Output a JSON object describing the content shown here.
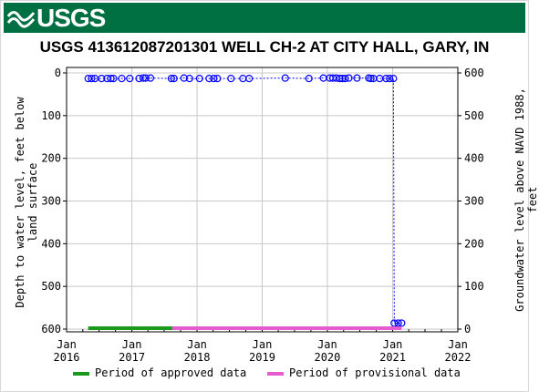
{
  "header": {
    "logo_text": "USGS",
    "brand_color": "#006f41"
  },
  "chart_data": {
    "type": "scatter",
    "title": "USGS 413612087201301 WELL CH-2 AT CITY HALL, GARY, IN",
    "ylabel_left": "Depth to water level, feet below land surface",
    "ylabel_right": "Groundwater level above NAVD 1988, feet",
    "y_left_range": [
      0,
      600
    ],
    "y_left_ticks": [
      0,
      100,
      200,
      300,
      400,
      500,
      600
    ],
    "y_left_inverted": true,
    "y_right_range": [
      0,
      600
    ],
    "y_right_ticks": [
      0,
      100,
      200,
      300,
      400,
      500,
      600
    ],
    "x_range": [
      "2016-01-01",
      "2022-01-01"
    ],
    "x_ticks": [
      {
        "date": "2016-01-01",
        "label1": "Jan",
        "label2": "2016"
      },
      {
        "date": "2017-01-01",
        "label1": "Jan",
        "label2": "2017"
      },
      {
        "date": "2018-01-01",
        "label1": "Jan",
        "label2": "2018"
      },
      {
        "date": "2019-01-01",
        "label1": "Jan",
        "label2": "2019"
      },
      {
        "date": "2020-01-01",
        "label1": "Jan",
        "label2": "2020"
      },
      {
        "date": "2021-01-01",
        "label1": "Jan",
        "label2": "2021"
      },
      {
        "date": "2022-01-01",
        "label1": "Jan",
        "label2": "2022"
      }
    ],
    "grid": true,
    "series": [
      {
        "marker_color": "#0000ff",
        "line_style": "dotted",
        "points": [
          [
            "2016-05-01",
            13
          ],
          [
            "2016-05-20",
            13
          ],
          [
            "2016-06-08",
            13
          ],
          [
            "2016-07-15",
            13
          ],
          [
            "2016-08-15",
            13
          ],
          [
            "2016-09-05",
            13
          ],
          [
            "2016-09-20",
            13
          ],
          [
            "2016-11-05",
            13
          ],
          [
            "2016-12-20",
            13
          ],
          [
            "2017-02-10",
            13
          ],
          [
            "2017-03-05",
            12
          ],
          [
            "2017-03-20",
            12
          ],
          [
            "2017-04-15",
            12
          ],
          [
            "2017-08-10",
            13
          ],
          [
            "2017-08-25",
            13
          ],
          [
            "2017-10-20",
            12
          ],
          [
            "2017-11-20",
            13
          ],
          [
            "2018-01-15",
            13
          ],
          [
            "2018-03-10",
            13
          ],
          [
            "2018-04-05",
            13
          ],
          [
            "2018-04-25",
            13
          ],
          [
            "2018-07-10",
            13
          ],
          [
            "2018-09-15",
            13
          ],
          [
            "2018-10-20",
            13
          ],
          [
            "2019-05-10",
            12
          ],
          [
            "2019-09-20",
            13
          ],
          [
            "2019-12-10",
            12
          ],
          [
            "2020-01-15",
            12
          ],
          [
            "2020-02-01",
            12
          ],
          [
            "2020-02-20",
            12
          ],
          [
            "2020-03-10",
            13
          ],
          [
            "2020-03-25",
            13
          ],
          [
            "2020-04-10",
            13
          ],
          [
            "2020-05-01",
            12
          ],
          [
            "2020-06-15",
            12
          ],
          [
            "2020-08-20",
            12
          ],
          [
            "2020-09-01",
            13
          ],
          [
            "2020-09-15",
            13
          ],
          [
            "2020-10-20",
            13
          ],
          [
            "2020-11-25",
            13
          ],
          [
            "2020-12-15",
            13
          ],
          [
            "2021-01-05",
            13
          ],
          [
            "2021-01-10",
            586
          ],
          [
            "2021-02-01",
            586
          ],
          [
            "2021-02-20",
            586
          ]
        ]
      }
    ],
    "legend": [
      {
        "label": "Period of approved data",
        "color": "#1a9a1a",
        "start": "2016-05-01",
        "end": "2017-08-15"
      },
      {
        "label": "Period of provisional data",
        "color": "#e65ccf",
        "start": "2017-08-15",
        "end": "2021-02-20"
      }
    ],
    "legend_position": "bottom"
  }
}
